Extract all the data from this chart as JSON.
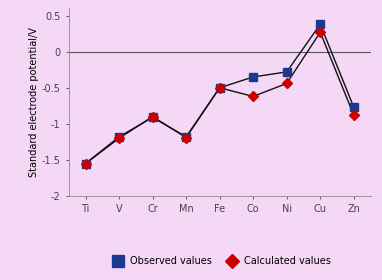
{
  "elements": [
    "Ti",
    "V",
    "Cr",
    "Mn",
    "Fe",
    "Co",
    "Ni",
    "Cu",
    "Zn"
  ],
  "observed": [
    -1.55,
    -1.18,
    -0.91,
    -1.18,
    -0.5,
    -0.35,
    -0.28,
    0.38,
    -0.77
  ],
  "calculated": [
    -1.55,
    -1.2,
    -0.9,
    -1.19,
    -0.5,
    -0.62,
    -0.44,
    0.27,
    -0.88
  ],
  "observed_color": "#1a3a8f",
  "calculated_color": "#cc0000",
  "line_color": "#111111",
  "background_color": "#f5d8f5",
  "plot_bg_color": "#f5d8f5",
  "ylabel": "Standard electrode potential/V",
  "ylim": [
    -2.0,
    0.6
  ],
  "yticks": [
    -2.0,
    -1.5,
    -1.0,
    -0.5,
    0.0,
    0.5
  ],
  "ytick_labels": [
    "-2",
    "-1.5",
    "-1",
    "-0.5",
    "0",
    "0.5"
  ],
  "legend_observed": "Observed values",
  "legend_calculated": "Calculated values",
  "marker_observed": "s",
  "marker_calculated": "D",
  "marker_size_observed": 6,
  "marker_size_calculated": 5,
  "tick_fontsize": 7,
  "ylabel_fontsize": 7,
  "legend_fontsize": 7
}
